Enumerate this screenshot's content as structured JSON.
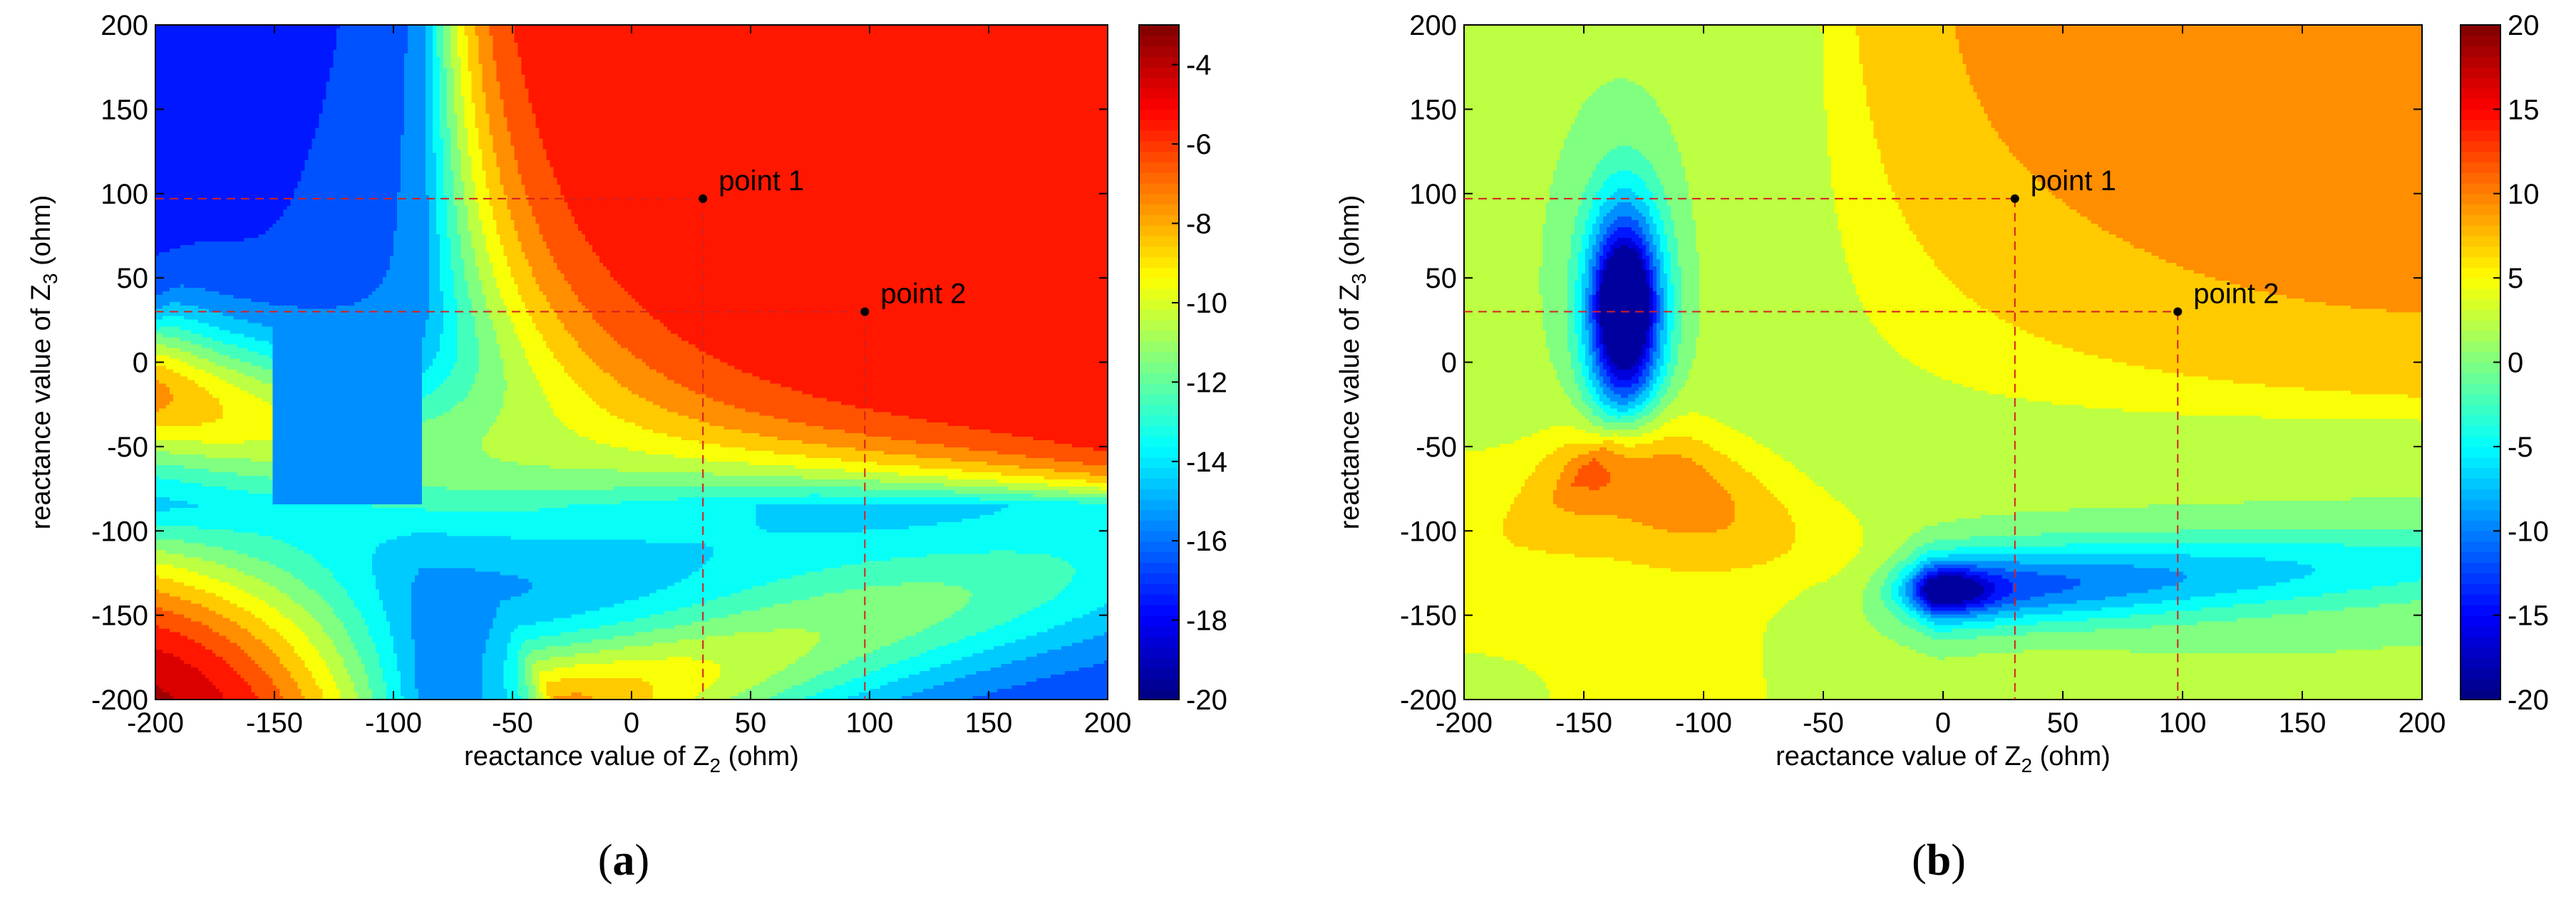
{
  "chart_data": [
    {
      "type": "contour",
      "panel_label": "(a)",
      "panel_prefix": "(",
      "panel_letter": "a",
      "panel_suffix": ")",
      "xlabel_prefix": "reactance value of Z",
      "xlabel_sub": "2",
      "xlabel_suffix": " (ohm)",
      "ylabel_prefix": "reactance value of Z",
      "ylabel_sub": "3",
      "ylabel_suffix": " (ohm)",
      "xlim": [
        -200,
        200
      ],
      "ylim": [
        -200,
        200
      ],
      "xticks": [
        -200,
        -150,
        -100,
        -50,
        0,
        50,
        100,
        150,
        200
      ],
      "yticks": [
        -200,
        -150,
        -100,
        -50,
        0,
        50,
        100,
        150,
        200
      ],
      "colorbar": {
        "range": [
          -20,
          -3
        ],
        "ticks": [
          -20,
          -18,
          -16,
          -14,
          -12,
          -10,
          -8,
          -6,
          -4
        ]
      },
      "field": {
        "base": -15.6,
        "terms": [
          {
            "kind": "hyper",
            "cx": -88,
            "cy": -85,
            "sign": 1,
            "amp": 10.5,
            "scale": 7000
          },
          {
            "kind": "ridge",
            "x0": -200,
            "y0": -20,
            "dir": [
              0.95,
              -0.31
            ],
            "len": 150,
            "wid": 32,
            "amp": 9.2
          },
          {
            "kind": "ridge",
            "x0": -20,
            "y0": -205,
            "dir": [
              0.93,
              0.37
            ],
            "len": 230,
            "wid": 32,
            "amp": 9.2
          },
          {
            "kind": "gauss",
            "x": -200,
            "y": -200,
            "sx": 60,
            "sy": 60,
            "amp": 1.8
          }
        ],
        "clip": [
          -20,
          -3
        ]
      },
      "plateau": {
        "x_from": -150,
        "x_to": -88,
        "y_from": -85,
        "y_to": 200,
        "value": -15.6
      },
      "points": [
        {
          "label": "point 1",
          "x": 30,
          "y": 97
        },
        {
          "label": "point 2",
          "x": 98,
          "y": 30
        }
      ],
      "guide_lines": [
        {
          "x": 30,
          "y": 97
        },
        {
          "x": 98,
          "y": 30
        }
      ]
    },
    {
      "type": "contour",
      "panel_label": "(b)",
      "panel_prefix": "(",
      "panel_letter": "b",
      "panel_suffix": ")",
      "xlabel_prefix": "reactance value of Z",
      "xlabel_sub": "2",
      "xlabel_suffix": " (ohm)",
      "ylabel_prefix": "reactance value of Z",
      "ylabel_sub": "3",
      "ylabel_suffix": " (ohm)",
      "xlim": [
        -200,
        200
      ],
      "ylim": [
        -200,
        200
      ],
      "xticks": [
        -200,
        -150,
        -100,
        -50,
        0,
        50,
        100,
        150,
        200
      ],
      "yticks": [
        -200,
        -150,
        -100,
        -50,
        0,
        50,
        100,
        150,
        200
      ],
      "colorbar": {
        "range": [
          -20,
          20
        ],
        "ticks": [
          -20,
          -15,
          -10,
          -5,
          0,
          5,
          10,
          15,
          20
        ]
      },
      "field": {
        "base": 2.0,
        "terms": [
          {
            "kind": "hyper",
            "cx": -55,
            "cy": -40,
            "sign": 1,
            "amp": 5.0,
            "scale": 6500
          },
          {
            "kind": "gauss",
            "x": -133,
            "y": 30,
            "sx": 16,
            "sy": 65,
            "amp": -26
          },
          {
            "kind": "gauss",
            "x": -133,
            "y": 35,
            "sx": 8,
            "sy": 22,
            "amp": -12
          },
          {
            "kind": "ridge",
            "x0": 5,
            "y0": -135,
            "dir": [
              1,
              0.08
            ],
            "len": 190,
            "wid": 17,
            "amp": -16
          },
          {
            "kind": "gauss",
            "x": 2,
            "y": -135,
            "sx": 18,
            "sy": 12,
            "amp": -10
          },
          {
            "kind": "ridge",
            "x0": -135,
            "y0": -60,
            "dir": [
              0.84,
              -0.54
            ],
            "len": 85,
            "wid": 24,
            "amp": 10
          },
          {
            "kind": "gauss",
            "x": -200,
            "y": -200,
            "sx": 90,
            "sy": 70,
            "amp": -4
          },
          {
            "kind": "gauss",
            "x": 200,
            "y": 200,
            "sx": 200,
            "sy": 170,
            "amp": 3.5
          }
        ],
        "clip": [
          -20,
          20
        ]
      },
      "points": [
        {
          "label": "point 1",
          "x": 30,
          "y": 97
        },
        {
          "label": "point 2",
          "x": 98,
          "y": 30
        }
      ],
      "guide_lines": [
        {
          "x": 30,
          "y": 97
        },
        {
          "x": 98,
          "y": 30
        }
      ]
    }
  ]
}
